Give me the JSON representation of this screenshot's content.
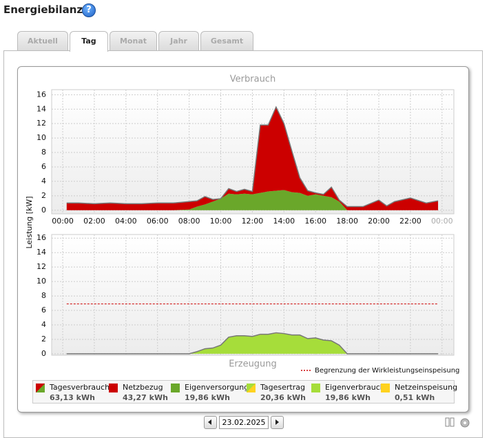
{
  "header": {
    "title": "Energiebilanz"
  },
  "tabs": [
    "Aktuell",
    "Tag",
    "Monat",
    "Jahr",
    "Gesamt"
  ],
  "active_tab": 1,
  "chart_data": [
    {
      "type": "area",
      "title": "Verbrauch",
      "ylabel": "Leistung [kW]",
      "x": [
        0.25,
        1,
        2,
        3,
        4,
        5,
        6,
        7,
        8,
        8.5,
        9,
        9.5,
        10,
        10.5,
        11,
        11.5,
        12,
        12.5,
        13,
        13.5,
        14,
        14.5,
        15,
        15.5,
        16,
        16.5,
        17,
        17.5,
        18,
        19,
        20,
        20.5,
        21,
        22,
        23,
        23.75
      ],
      "xlim": [
        -0.7,
        24.75
      ],
      "xticks": [
        {
          "value": 0,
          "label": "00:00"
        },
        {
          "value": 2,
          "label": "02:00"
        },
        {
          "value": 4,
          "label": "04:00"
        },
        {
          "value": 6,
          "label": "06:00"
        },
        {
          "value": 8,
          "label": "08:00"
        },
        {
          "value": 10,
          "label": "10:00"
        },
        {
          "value": 12,
          "label": "12:00"
        },
        {
          "value": 14,
          "label": "14:00"
        },
        {
          "value": 16,
          "label": "16:00"
        },
        {
          "value": 18,
          "label": "18:00"
        },
        {
          "value": 20,
          "label": "20:00"
        },
        {
          "value": 22,
          "label": "22:00"
        },
        {
          "value": 24,
          "label": "00:00"
        }
      ],
      "ylim": [
        -0.5,
        16.7
      ],
      "yticks": [
        0,
        2,
        4,
        6,
        8,
        10,
        12,
        14,
        16
      ],
      "grid": true,
      "series": [
        {
          "name": "Eigenversorgung",
          "color": "#6aa72a",
          "values": [
            0,
            0,
            0,
            0,
            0,
            0,
            0,
            0,
            0.1,
            0.5,
            0.8,
            1.2,
            1.6,
            2.3,
            2.2,
            2.3,
            2.2,
            2.4,
            2.6,
            2.7,
            2.8,
            2.5,
            2.4,
            2.0,
            2.2,
            2.0,
            1.8,
            1.2,
            0,
            0,
            0,
            0,
            0,
            0,
            0,
            0
          ]
        },
        {
          "name": "Netzbezug",
          "color": "#cc0000",
          "values": [
            1.0,
            1.0,
            0.9,
            1.0,
            0.9,
            0.9,
            1.0,
            1.0,
            1.1,
            0.8,
            1.1,
            0.3,
            0,
            0.7,
            0.4,
            0.6,
            0.4,
            9.4,
            9.2,
            11.6,
            9.2,
            5.7,
            2.1,
            0.7,
            0.2,
            0.2,
            1.4,
            0.2,
            0.5,
            0.5,
            1.4,
            0.6,
            1.2,
            1.7,
            1.0,
            1.3
          ]
        }
      ]
    },
    {
      "type": "area",
      "title": "Erzeugung",
      "x": [
        0.25,
        1,
        2,
        3,
        4,
        5,
        6,
        7,
        8,
        8.5,
        9,
        9.5,
        10,
        10.5,
        11,
        11.5,
        12,
        12.5,
        13,
        13.5,
        14,
        14.5,
        15,
        15.5,
        16,
        16.5,
        17,
        17.5,
        18,
        19,
        20,
        20.5,
        21,
        22,
        23,
        23.75
      ],
      "xlim": [
        -0.7,
        24.75
      ],
      "ylim": [
        -0.2,
        16.5
      ],
      "yticks": [
        0,
        2,
        4,
        6,
        8,
        10,
        12,
        14,
        16
      ],
      "grid": true,
      "series": [
        {
          "name": "Eigenverbrauch",
          "color": "#a6dd3a",
          "values": [
            0,
            0,
            0,
            0,
            0,
            0,
            0,
            0,
            0,
            0.3,
            0.7,
            0.8,
            1.2,
            2.3,
            2.5,
            2.5,
            2.4,
            2.6,
            2.7,
            2.8,
            2.8,
            2.6,
            2.6,
            2.1,
            2.2,
            1.9,
            1.8,
            1.2,
            0,
            0,
            0,
            0,
            0,
            0,
            0,
            0
          ]
        },
        {
          "name": "Netzeinspeisung",
          "color": "#ffd21f",
          "values": [
            0,
            0,
            0,
            0,
            0,
            0,
            0,
            0,
            0,
            0,
            0,
            0,
            0,
            0,
            0,
            0,
            0,
            0.1,
            0,
            0.1,
            0,
            0,
            0,
            0,
            0,
            0,
            0,
            0,
            0,
            0,
            0,
            0,
            0,
            0,
            0,
            0
          ]
        }
      ],
      "limit": {
        "value": 6.9,
        "label": "Begrenzung der Wirkleistungseinspeisung",
        "color": "#cc0000"
      }
    }
  ],
  "summary": [
    {
      "name": "Tagesverbrauch",
      "value": "63,13 kWh"
    },
    {
      "name": "Netzbezug",
      "value": "43,27 kWh"
    },
    {
      "name": "Eigenversorgung",
      "value": "19,86 kWh"
    },
    {
      "name": "Tagesertrag",
      "value": "20,36 kWh"
    },
    {
      "name": "Eigenverbrauch",
      "value": "19,86 kWh"
    },
    {
      "name": "Netzeinspeisung",
      "value": "0,51 kWh"
    }
  ],
  "date": "23.02.2025"
}
